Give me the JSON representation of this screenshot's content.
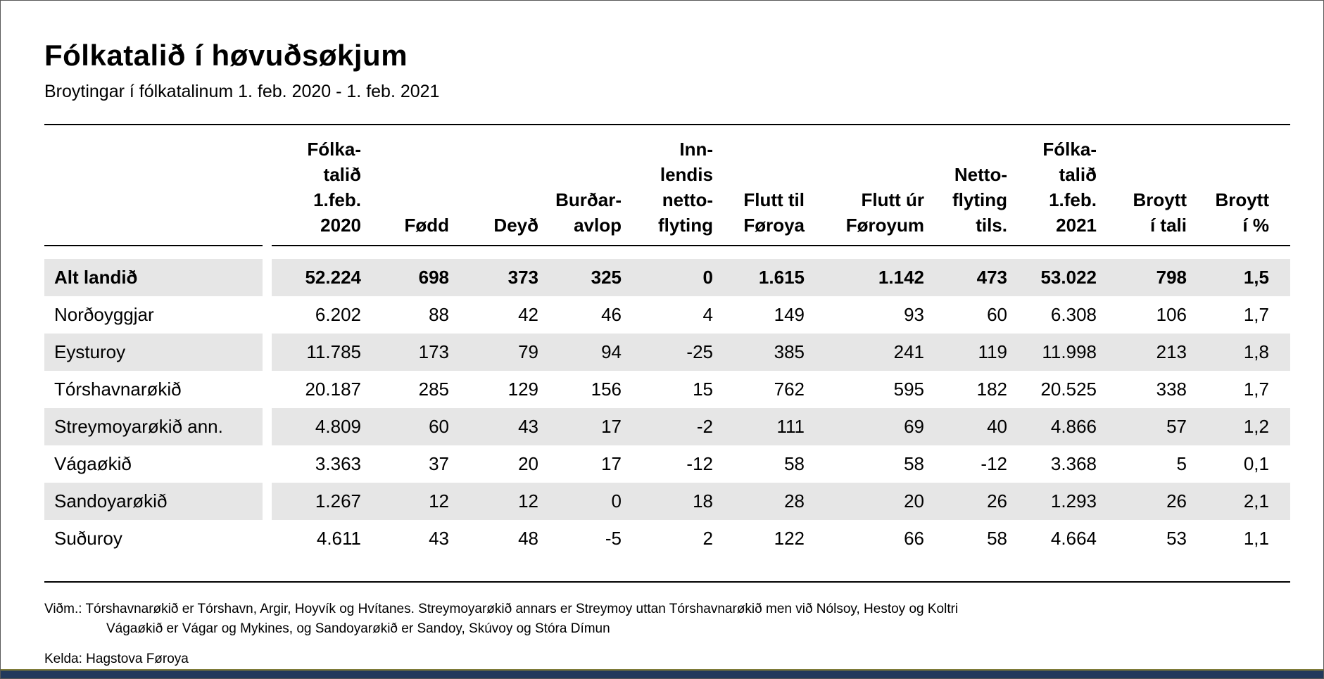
{
  "page": {
    "title": "Fólkatalið í høvuðsøkjum",
    "subtitle": "Broytingar í fólkatalinum 1. feb. 2020 - 1. feb. 2021"
  },
  "table": {
    "columns": [
      {
        "label": "Fólka-\ntalið\n1.feb.\n2020"
      },
      {
        "label": "Fødd"
      },
      {
        "label": "Deyð"
      },
      {
        "label": "Burðar-\navlop"
      },
      {
        "label": "Inn-\nlendis\nnetto-\nflyting"
      },
      {
        "label": "Flutt til\nFøroya"
      },
      {
        "label": "Flutt úr\nFøroyum"
      },
      {
        "label": "Netto-\nflyting\ntils."
      },
      {
        "label": "Fólka-\ntalið\n1.feb.\n2021"
      },
      {
        "label": "Broytt\ní tali"
      },
      {
        "label": "Broytt\ní %"
      }
    ],
    "rows": [
      {
        "label": "Alt landið",
        "bold": true,
        "shaded": true,
        "values": [
          "52.224",
          "698",
          "373",
          "325",
          "0",
          "1.615",
          "1.142",
          "473",
          "53.022",
          "798",
          "1,5"
        ]
      },
      {
        "label": "Norðoyggjar",
        "bold": false,
        "shaded": false,
        "values": [
          "6.202",
          "88",
          "42",
          "46",
          "4",
          "149",
          "93",
          "60",
          "6.308",
          "106",
          "1,7"
        ]
      },
      {
        "label": "Eysturoy",
        "bold": false,
        "shaded": true,
        "values": [
          "11.785",
          "173",
          "79",
          "94",
          "-25",
          "385",
          "241",
          "119",
          "11.998",
          "213",
          "1,8"
        ]
      },
      {
        "label": "Tórshavnarøkið",
        "bold": false,
        "shaded": false,
        "values": [
          "20.187",
          "285",
          "129",
          "156",
          "15",
          "762",
          "595",
          "182",
          "20.525",
          "338",
          "1,7"
        ]
      },
      {
        "label": "Streymoyarøkið ann.",
        "bold": false,
        "shaded": true,
        "values": [
          "4.809",
          "60",
          "43",
          "17",
          "-2",
          "111",
          "69",
          "40",
          "4.866",
          "57",
          "1,2"
        ]
      },
      {
        "label": "Vágaøkið",
        "bold": false,
        "shaded": false,
        "values": [
          "3.363",
          "37",
          "20",
          "17",
          "-12",
          "58",
          "58",
          "-12",
          "3.368",
          "5",
          "0,1"
        ]
      },
      {
        "label": "Sandoyarøkið",
        "bold": false,
        "shaded": true,
        "values": [
          "1.267",
          "12",
          "12",
          "0",
          "18",
          "28",
          "20",
          "26",
          "1.293",
          "26",
          "2,1"
        ]
      },
      {
        "label": "Suðuroy",
        "bold": false,
        "shaded": false,
        "values": [
          "4.611",
          "43",
          "48",
          "-5",
          "2",
          "122",
          "66",
          "58",
          "4.664",
          "53",
          "1,1"
        ]
      }
    ]
  },
  "footnotes": {
    "note_line1": "Viðm.: Tórshavnarøkið er Tórshavn, Argir, Hoyvík og Hvítanes. Streymoyarøkið annars er Streymoy uttan Tórshavnarøkið men við Nólsoy, Hestoy og Koltri",
    "note_line2": "Vágaøkið er Vágar og Mykines, og Sandoyarøkið er Sandoy, Skúvoy og Stóra Dímun",
    "source": "Kelda: Hagstova Føroya"
  },
  "colors": {
    "row_shade": "#e6e6e6",
    "rule": "#000000",
    "bottom_bar": "#22395c",
    "bottom_bar_edge": "#7e7b38"
  }
}
